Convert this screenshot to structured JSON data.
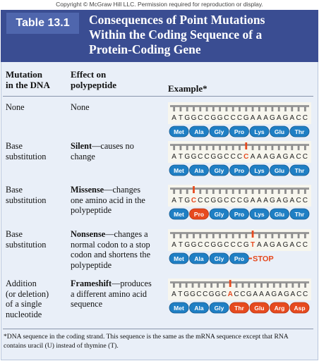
{
  "copyright": "Copyright © McGraw Hill LLC. Permission required for reproduction or display.",
  "table_label": "Table 13.1",
  "title_lines": [
    "Consequences of Point Mutations",
    "Within the Coding Sequence of a",
    "Protein-Coding Gene"
  ],
  "columns": {
    "mutation": [
      "Mutation",
      "in the DNA"
    ],
    "effect": [
      "Effect on",
      "polypeptide"
    ],
    "example": "Example*"
  },
  "rows": [
    {
      "mutation_lines": [
        "None"
      ],
      "effect_term": "None",
      "effect_lines": [
        "None"
      ],
      "dna": "ATGGCCGGCCCGAAAGAGACC",
      "mutated_indices": [],
      "amino_acids": [
        "Met",
        "Ala",
        "Gly",
        "Pro",
        "Lys",
        "Glu",
        "Thr"
      ],
      "changed_amino_acids": [],
      "stop_label": ""
    },
    {
      "mutation_lines": [
        "Base",
        "substitution"
      ],
      "effect_lines": [
        "Silent—causes no",
        "change"
      ],
      "dna": "ATGGCCGGCCCCAAAGAGACC",
      "mutated_indices": [
        11
      ],
      "amino_acids": [
        "Met",
        "Ala",
        "Gly",
        "Pro",
        "Lys",
        "Glu",
        "Thr"
      ],
      "changed_amino_acids": [],
      "stop_label": ""
    },
    {
      "mutation_lines": [
        "Base",
        "substitution"
      ],
      "effect_lines": [
        "Missense—changes",
        "one amino acid in the",
        "polypeptide"
      ],
      "dna": "ATGCCCGGCCCGAAAGAGACC",
      "mutated_indices": [
        3
      ],
      "amino_acids": [
        "Met",
        "Pro",
        "Gly",
        "Pro",
        "Lys",
        "Glu",
        "Thr"
      ],
      "changed_amino_acids": [
        1
      ],
      "stop_label": ""
    },
    {
      "mutation_lines": [
        "Base",
        "substitution"
      ],
      "effect_lines": [
        "Nonsense—changes a",
        "normal codon to a stop",
        "codon and shortens the",
        "polypeptide"
      ],
      "dna": "ATGGCCGGCCCGTAAGAGACC",
      "mutated_indices": [
        12
      ],
      "amino_acids": [
        "Met",
        "Ala",
        "Gly",
        "Pro"
      ],
      "changed_amino_acids": [],
      "stop_label": "STOP"
    },
    {
      "mutation_lines": [
        "Addition",
        "(or deletion)",
        "of a single",
        "nucleotide"
      ],
      "effect_lines": [
        "Frameshift—produces",
        "a different amino acid",
        "sequence"
      ],
      "dna": "ATGGCCGGCACCGAAAGAGACC",
      "mutated_indices": [
        9
      ],
      "amino_acids": [
        "Met",
        "Ala",
        "Gly",
        "Thr",
        "Glu",
        "Arg",
        "Asp"
      ],
      "changed_amino_acids": [
        3,
        4,
        5,
        6
      ],
      "stop_label": ""
    }
  ],
  "footnote_lines": [
    "*DNA sequence in the coding strand. This sequence is the same as the mRNA sequence except that RNA",
    "contains uracil (U) instead of thymine (T)."
  ],
  "colors": {
    "header": "#3a4d92",
    "panel": "#e9eff8",
    "amino_acid": "#1f7fc4",
    "mutation": "#e64a1f"
  }
}
